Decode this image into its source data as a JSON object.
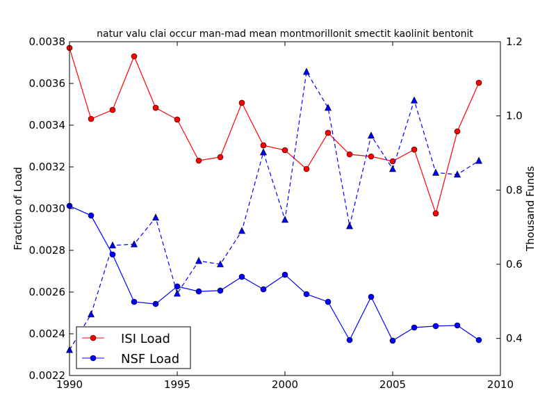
{
  "chart_data": {
    "type": "line",
    "title": "natur valu clai occur man-mad mean montmorillonit smectit kaolinit bentonit",
    "xlabel": "",
    "ylabel": "Fraction of Load",
    "y2label": "Thousand Funds",
    "xlim": [
      1990,
      2010
    ],
    "ylim": [
      0.0022,
      0.0038
    ],
    "y2lim": [
      0.3,
      1.2
    ],
    "xticks": [
      "1990",
      "1995",
      "2000",
      "2005",
      "2010"
    ],
    "yticks": [
      "0.0022",
      "0.0024",
      "0.0026",
      "0.0028",
      "0.0030",
      "0.0032",
      "0.0034",
      "0.0036",
      "0.0038"
    ],
    "y2ticks": [
      "0.4",
      "0.6",
      "0.8",
      "1.0",
      "1.2"
    ],
    "legend_position": "lower-left",
    "x": [
      1990,
      1991,
      1992,
      1993,
      1994,
      1995,
      1996,
      1997,
      1998,
      1999,
      2000,
      2001,
      2002,
      2003,
      2004,
      2005,
      2006,
      2007,
      2008,
      2009
    ],
    "series": [
      {
        "name": "ISI Load",
        "axis": "left",
        "color": "#ff0000",
        "marker": "circle",
        "dashed": false,
        "values": [
          0.00377,
          0.00343,
          0.003473,
          0.00373,
          0.003483,
          0.003427,
          0.00323,
          0.003247,
          0.003507,
          0.003303,
          0.00328,
          0.00319,
          0.003363,
          0.00326,
          0.00325,
          0.003227,
          0.003283,
          0.002977,
          0.00337,
          0.003603
        ]
      },
      {
        "name": "NSF Load",
        "axis": "left",
        "color": "#0000ff",
        "marker": "circle",
        "dashed": false,
        "values": [
          0.003013,
          0.002967,
          0.00278,
          0.002553,
          0.002543,
          0.002627,
          0.002603,
          0.002607,
          0.002673,
          0.002613,
          0.002683,
          0.00259,
          0.002553,
          0.00237,
          0.002577,
          0.002367,
          0.00243,
          0.002437,
          0.00244,
          0.00237
        ]
      },
      {
        "name": "Thousand Funds",
        "axis": "right",
        "color": "#0000ff",
        "marker": "triangle",
        "dashed": true,
        "in_legend": false,
        "values": [
          0.369,
          0.465,
          0.651,
          0.654,
          0.726,
          0.521,
          0.609,
          0.6,
          0.69,
          0.902,
          0.72,
          1.119,
          1.022,
          0.703,
          0.947,
          0.857,
          1.042,
          0.847,
          0.842,
          0.879
        ]
      }
    ]
  }
}
